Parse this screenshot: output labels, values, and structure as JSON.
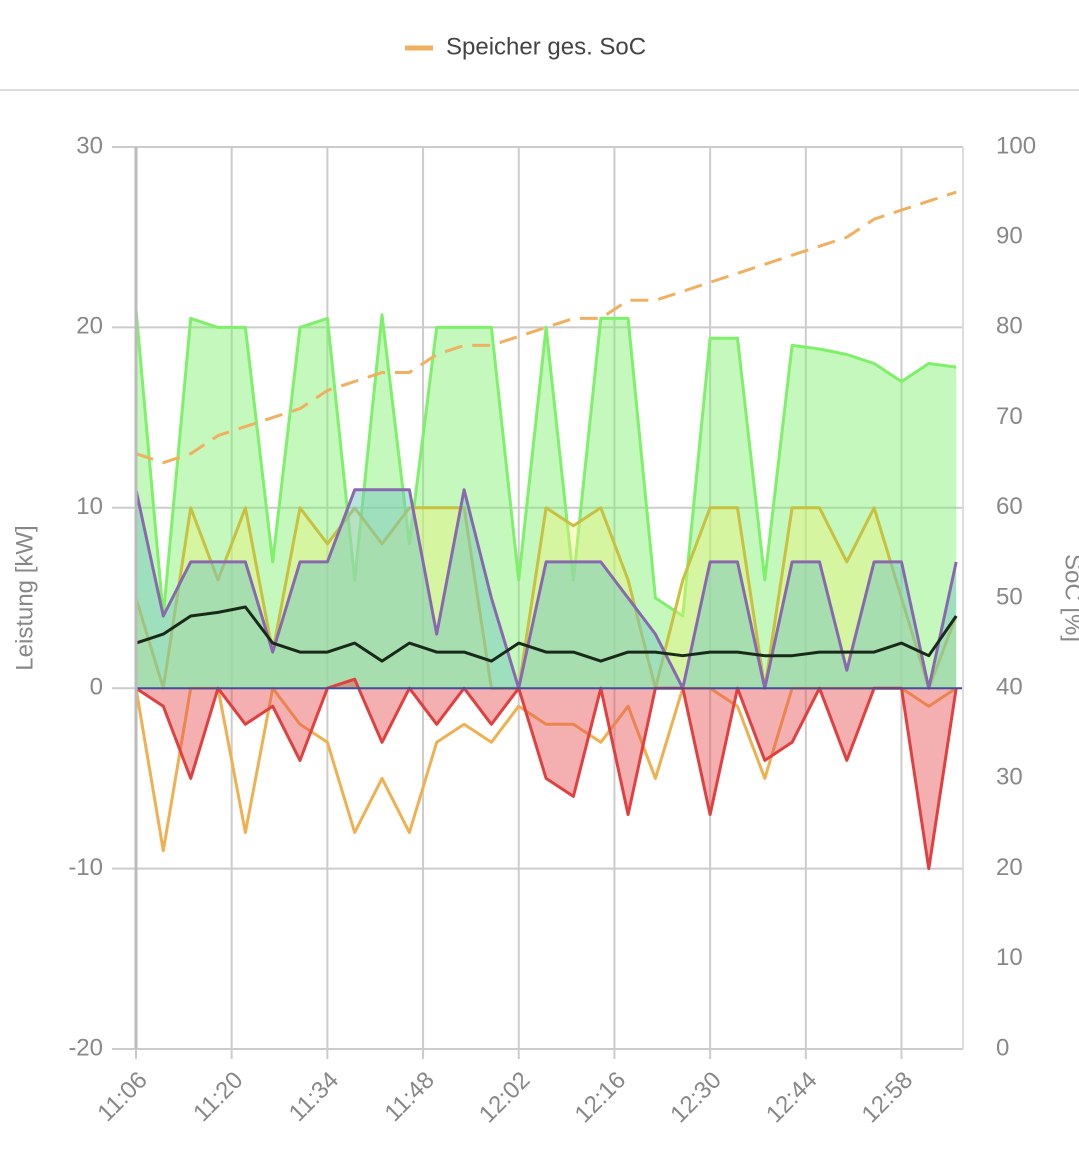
{
  "chart_data": {
    "type": "line",
    "x": [
      "11:06",
      "11:10",
      "11:14",
      "11:18",
      "11:22",
      "11:26",
      "11:30",
      "11:34",
      "11:38",
      "11:42",
      "11:46",
      "11:50",
      "11:54",
      "11:58",
      "12:02",
      "12:06",
      "12:10",
      "12:14",
      "12:18",
      "12:22",
      "12:26",
      "12:30",
      "12:34",
      "12:38",
      "12:42",
      "12:46",
      "12:50",
      "12:54",
      "12:58",
      "13:02",
      "13:06"
    ],
    "xlim": [
      "11:06",
      "13:07"
    ],
    "xticks": [
      "11:06",
      "11:20",
      "11:34",
      "11:48",
      "12:02",
      "12:16",
      "12:30",
      "12:44",
      "12:58"
    ],
    "ylim": [
      -20,
      30
    ],
    "yticks": [
      -20,
      -10,
      0,
      10,
      20,
      30
    ],
    "y2lim": [
      0,
      100
    ],
    "y2ticks": [
      0,
      10,
      20,
      30,
      40,
      50,
      60,
      70,
      80,
      90,
      100
    ],
    "ylabel": "Leistung [kW]",
    "y2label": "SoC [%]",
    "grid": true,
    "series": [
      {
        "color": "#7ef06a",
        "fill": "rgba(124,240,106,0.45)",
        "values": [
          21,
          4,
          20.5,
          20,
          20,
          7,
          20,
          20.5,
          6,
          20.7,
          8,
          20,
          20,
          20,
          6,
          20,
          6,
          20.5,
          20.5,
          5,
          4,
          19.4,
          19.4,
          6,
          19,
          18.8,
          18.5,
          18,
          17,
          18,
          17.8
        ]
      },
      {
        "color": "#c8c040",
        "fill": "rgba(240,240,120,0.4)",
        "values": [
          5,
          0,
          10,
          6,
          10,
          2,
          10,
          8,
          10,
          8,
          10,
          10,
          10,
          0,
          0,
          10,
          9,
          10,
          6,
          0,
          6,
          10,
          10,
          0,
          10,
          10,
          7,
          10,
          5,
          0,
          4
        ]
      },
      {
        "color": "#8a68b0",
        "fill": "rgba(120,200,190,0.5)",
        "values": [
          11,
          4,
          7,
          7,
          7,
          2,
          7,
          7,
          11,
          11,
          11,
          3,
          11,
          5,
          0,
          7,
          7,
          7,
          5,
          3,
          0,
          7,
          7,
          0,
          7,
          7,
          1,
          7,
          7,
          0,
          7
        ]
      },
      {
        "color": "#1a2a1a",
        "values": [
          2.5,
          3,
          4,
          4.2,
          4.5,
          2.5,
          2,
          2,
          2.5,
          1.5,
          2.5,
          2,
          2,
          1.5,
          2.5,
          2,
          2,
          1.5,
          2,
          2,
          1.8,
          2,
          2,
          1.8,
          1.8,
          2,
          2,
          2,
          2.5,
          1.8,
          4
        ]
      },
      {
        "color": "#f0b050",
        "values": [
          0,
          -9,
          0,
          0,
          -8,
          0,
          -2,
          -3,
          -8,
          -5,
          -8,
          -3,
          -2,
          -3,
          -1,
          -2,
          -2,
          -3,
          -1,
          -5,
          0,
          0,
          -1,
          -5,
          0,
          0,
          0,
          0,
          0,
          -1,
          0
        ]
      },
      {
        "color": "#e04040",
        "fill": "rgba(230,80,80,0.45)",
        "values": [
          0,
          -1,
          -5,
          0,
          -2,
          -1,
          -4,
          0,
          0.5,
          -3,
          0,
          -2,
          0,
          -2,
          0,
          -5,
          -6,
          0,
          -7,
          0,
          0,
          -7,
          0,
          -4,
          -3,
          0,
          -4,
          0,
          0,
          -10,
          0
        ]
      },
      {
        "name": "Speicher ges. SoC",
        "color": "#f0b060",
        "dashed": true,
        "axis": "y2",
        "values": [
          66,
          65,
          66,
          68,
          69,
          70,
          71,
          73,
          74,
          75,
          75,
          77,
          78,
          78,
          79,
          80,
          81,
          81,
          83,
          83,
          84,
          85,
          86,
          87,
          88,
          89,
          90,
          92,
          93,
          94,
          95
        ]
      }
    ]
  }
}
